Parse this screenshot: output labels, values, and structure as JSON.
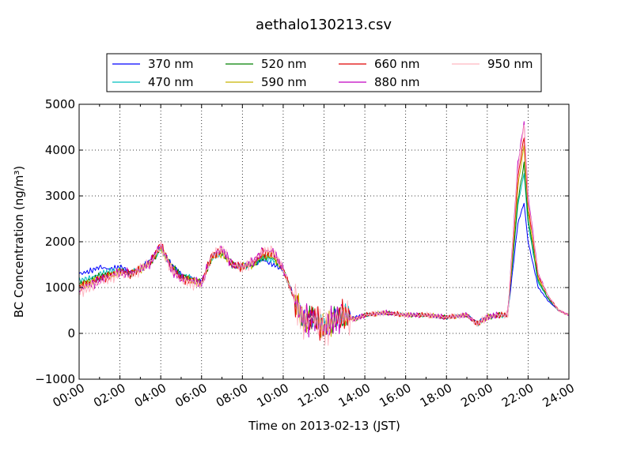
{
  "chart_data": {
    "type": "line",
    "title": "aethalo130213.csv",
    "xlabel": "Time on 2013-02-13 (JST)",
    "ylabel": "BC Concentration (ng/m³)",
    "xlim": [
      0,
      24
    ],
    "ylim": [
      -1000,
      5000
    ],
    "x_tick_labels": [
      "00:00",
      "02:00",
      "04:00",
      "06:00",
      "08:00",
      "10:00",
      "12:00",
      "14:00",
      "16:00",
      "18:00",
      "20:00",
      "22:00",
      "24:00"
    ],
    "y_tick_labels": [
      "−1000",
      "0",
      "1000",
      "2000",
      "3000",
      "4000",
      "5000"
    ],
    "grid": true,
    "legend_position": "top",
    "series": [
      {
        "name": "370 nm",
        "color": "#0000ff",
        "amp": 0.55,
        "peak": 2850,
        "x": [
          0,
          0.5,
          1,
          1.5,
          2,
          2.5,
          3,
          3.5,
          4,
          4.5,
          5,
          5.5,
          6,
          6.5,
          7,
          7.5,
          8,
          8.5,
          9,
          9.5,
          10,
          10.5,
          11,
          11.5,
          12,
          12.5,
          13,
          13.5,
          14,
          15,
          16,
          17,
          18,
          19,
          19.5,
          20,
          20.5,
          21,
          21.5,
          21.8,
          22,
          22.5,
          23,
          23.5,
          24
        ],
        "y": [
          1300,
          1350,
          1450,
          1400,
          1450,
          1350,
          1400,
          1600,
          1900,
          1500,
          1300,
          1200,
          1100,
          1700,
          1800,
          1500,
          1500,
          1500,
          1600,
          1500,
          1400,
          850,
          300,
          400,
          100,
          350,
          400,
          350,
          400,
          450,
          400,
          400,
          350,
          400,
          250,
          350,
          400,
          400,
          2400,
          2850,
          2000,
          1000,
          700,
          500,
          400
        ]
      },
      {
        "name": "470 nm",
        "color": "#00bfbf",
        "amp": 0.7,
        "peak": 3500,
        "x": [
          0,
          0.5,
          1,
          1.5,
          2,
          2.5,
          3,
          3.5,
          4,
          4.5,
          5,
          5.5,
          6,
          6.5,
          7,
          7.5,
          8,
          8.5,
          9,
          9.5,
          10,
          10.5,
          11,
          11.5,
          12,
          12.5,
          13,
          13.5,
          14,
          15,
          16,
          17,
          18,
          19,
          19.5,
          20,
          20.5,
          21,
          21.5,
          21.8,
          22,
          22.5,
          23,
          23.5,
          24
        ],
        "y": [
          1150,
          1200,
          1300,
          1350,
          1400,
          1300,
          1400,
          1550,
          1850,
          1500,
          1250,
          1200,
          1100,
          1650,
          1750,
          1500,
          1450,
          1500,
          1650,
          1600,
          1400,
          800,
          250,
          350,
          100,
          300,
          400,
          300,
          400,
          450,
          400,
          400,
          350,
          400,
          200,
          350,
          400,
          400,
          2800,
          3500,
          2400,
          1100,
          750,
          500,
          400
        ]
      },
      {
        "name": "520 nm",
        "color": "#008000",
        "amp": 0.75,
        "peak": 3700,
        "x": [
          0,
          0.5,
          1,
          1.5,
          2,
          2.5,
          3,
          3.5,
          4,
          4.5,
          5,
          5.5,
          6,
          6.5,
          7,
          7.5,
          8,
          8.5,
          9,
          9.5,
          10,
          10.5,
          11,
          11.5,
          12,
          12.5,
          13,
          13.5,
          14,
          15,
          16,
          17,
          18,
          19,
          19.5,
          20,
          20.5,
          21,
          21.5,
          21.8,
          22,
          22.5,
          23,
          23.5,
          24
        ],
        "y": [
          1100,
          1150,
          1250,
          1300,
          1350,
          1300,
          1400,
          1550,
          1850,
          1500,
          1250,
          1200,
          1100,
          1650,
          1750,
          1500,
          1450,
          1500,
          1650,
          1650,
          1400,
          800,
          250,
          350,
          100,
          300,
          400,
          300,
          400,
          450,
          400,
          400,
          350,
          400,
          200,
          350,
          400,
          400,
          2900,
          3700,
          2500,
          1150,
          750,
          500,
          400
        ]
      },
      {
        "name": "590 nm",
        "color": "#c8b400",
        "amp": 0.85,
        "peak": 4100,
        "x": [
          0,
          0.5,
          1,
          1.5,
          2,
          2.5,
          3,
          3.5,
          4,
          4.5,
          5,
          5.5,
          6,
          6.5,
          7,
          7.5,
          8,
          8.5,
          9,
          9.5,
          10,
          10.5,
          11,
          11.5,
          12,
          12.5,
          13,
          13.5,
          14,
          15,
          16,
          17,
          18,
          19,
          19.5,
          20,
          20.5,
          21,
          21.5,
          21.8,
          22,
          22.5,
          23,
          23.5,
          24
        ],
        "y": [
          1050,
          1100,
          1200,
          1250,
          1350,
          1300,
          1400,
          1550,
          1850,
          1450,
          1200,
          1150,
          1100,
          1650,
          1750,
          1500,
          1450,
          1500,
          1700,
          1700,
          1400,
          800,
          250,
          350,
          100,
          300,
          400,
          300,
          400,
          450,
          400,
          400,
          350,
          400,
          200,
          350,
          400,
          400,
          3200,
          4100,
          2700,
          1200,
          800,
          500,
          400
        ]
      },
      {
        "name": "660 nm",
        "color": "#e00000",
        "amp": 0.9,
        "peak": 4300,
        "x": [
          0,
          0.5,
          1,
          1.5,
          2,
          2.5,
          3,
          3.5,
          4,
          4.5,
          5,
          5.5,
          6,
          6.5,
          7,
          7.5,
          8,
          8.5,
          9,
          9.5,
          10,
          10.5,
          11,
          11.5,
          12,
          12.5,
          13,
          13.5,
          14,
          15,
          16,
          17,
          18,
          19,
          19.5,
          20,
          20.5,
          21,
          21.5,
          21.8,
          22,
          22.5,
          23,
          23.5,
          24
        ],
        "y": [
          1000,
          1100,
          1200,
          1250,
          1350,
          1300,
          1400,
          1550,
          1950,
          1450,
          1200,
          1150,
          1100,
          1700,
          1800,
          1500,
          1450,
          1550,
          1750,
          1750,
          1400,
          800,
          250,
          350,
          100,
          300,
          400,
          300,
          400,
          450,
          400,
          400,
          350,
          400,
          200,
          350,
          400,
          400,
          3400,
          4300,
          2800,
          1250,
          800,
          500,
          400
        ]
      },
      {
        "name": "880 nm",
        "color": "#c000c0",
        "amp": 1.0,
        "peak": 4600,
        "x": [
          0,
          0.5,
          1,
          1.5,
          2,
          2.5,
          3,
          3.5,
          4,
          4.5,
          5,
          5.5,
          6,
          6.5,
          7,
          7.5,
          8,
          8.5,
          9,
          9.5,
          10,
          10.5,
          11,
          11.5,
          12,
          12.5,
          13,
          13.5,
          14,
          15,
          16,
          17,
          18,
          19,
          19.5,
          20,
          20.5,
          21,
          21.5,
          21.8,
          22,
          22.5,
          23,
          23.5,
          24
        ],
        "y": [
          950,
          1050,
          1150,
          1250,
          1350,
          1300,
          1400,
          1550,
          1950,
          1400,
          1200,
          1150,
          1100,
          1700,
          1850,
          1500,
          1450,
          1550,
          1800,
          1800,
          1400,
          800,
          250,
          350,
          100,
          300,
          400,
          300,
          400,
          450,
          400,
          400,
          350,
          400,
          200,
          350,
          400,
          400,
          3700,
          4600,
          3000,
          1300,
          800,
          500,
          400
        ]
      },
      {
        "name": "950 nm",
        "color": "#ffb6c1",
        "amp": 1.2,
        "peak": 4550,
        "x": [
          0,
          0.5,
          1,
          1.5,
          2,
          2.5,
          3,
          3.5,
          4,
          4.5,
          5,
          5.5,
          6,
          6.5,
          7,
          7.5,
          8,
          8.5,
          9,
          9.5,
          10,
          10.5,
          11,
          11.5,
          12,
          12.5,
          13,
          13.5,
          14,
          15,
          16,
          17,
          18,
          19,
          19.5,
          20,
          20.5,
          21,
          21.5,
          21.8,
          22,
          22.5,
          23,
          23.5,
          24
        ],
        "y": [
          900,
          1000,
          1100,
          1200,
          1300,
          1250,
          1400,
          1550,
          1900,
          1400,
          1150,
          1100,
          1050,
          1700,
          1850,
          1500,
          1450,
          1550,
          1800,
          1800,
          1400,
          800,
          250,
          350,
          100,
          300,
          400,
          300,
          400,
          450,
          400,
          400,
          350,
          400,
          200,
          350,
          400,
          400,
          3600,
          4550,
          2900,
          1300,
          800,
          500,
          400
        ]
      }
    ]
  }
}
